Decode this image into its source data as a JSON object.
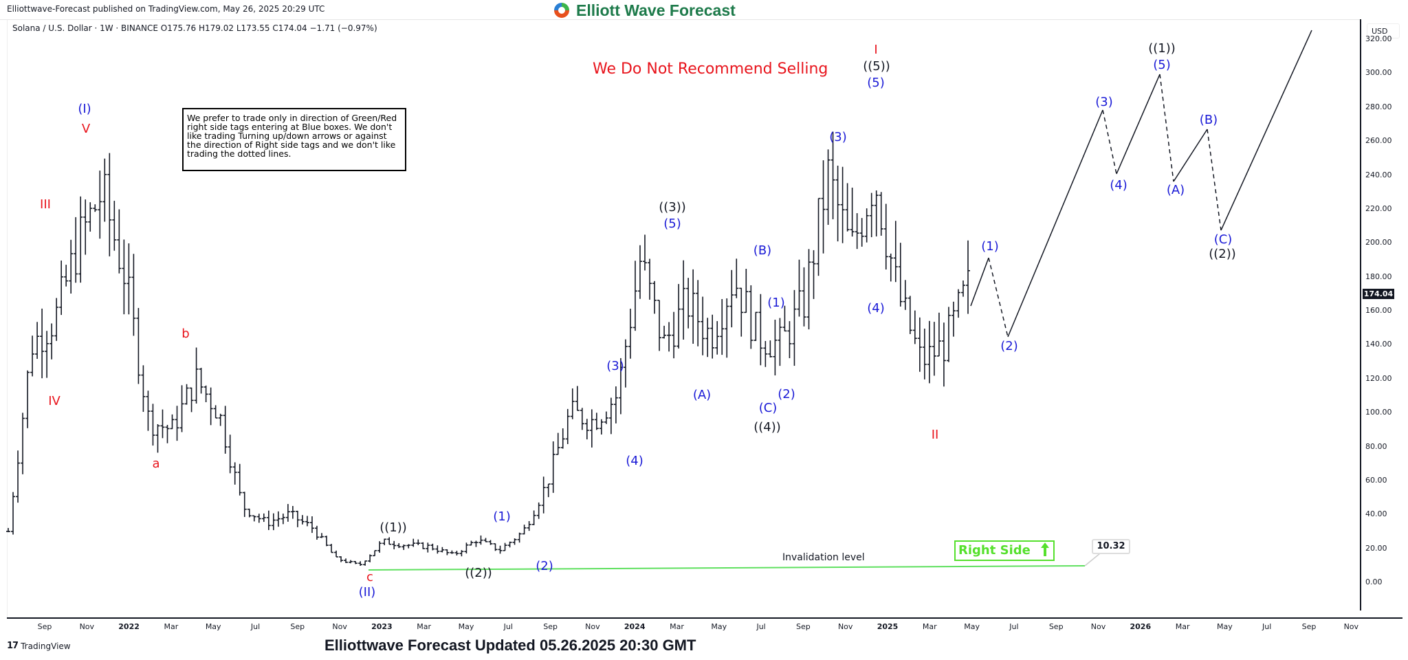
{
  "header": {
    "published": "Elliottwave-Forecast published on TradingView.com, May 26, 2025 20:29 UTC",
    "brand": "Elliott Wave Forecast",
    "symbol_line": "Solana / U.S. Dollar · 1W · BINANCE  O175.76  H179.02  L173.55  C174.04  −1.71 (−0.97%)"
  },
  "symbol": {
    "name": "Solana / U.S. Dollar",
    "interval": "1W",
    "exchange": "BINANCE",
    "open": "175.76",
    "high": "179.02",
    "low": "173.55",
    "close": "174.04",
    "change": "−1.71",
    "change_pct": "(−0.97%)"
  },
  "price_axis": {
    "currency": "USD",
    "ticks": [
      "320.00",
      "300.00",
      "280.00",
      "260.00",
      "240.00",
      "220.00",
      "200.00",
      "180.00",
      "160.00",
      "140.00",
      "120.00",
      "100.00",
      "80.00",
      "60.00",
      "40.00",
      "20.00",
      "0.00"
    ],
    "last_price": "174.04"
  },
  "time_axis": {
    "ticks": [
      "Sep",
      "Nov",
      "2022",
      "Mar",
      "May",
      "Jul",
      "Sep",
      "Nov",
      "2023",
      "Mar",
      "May",
      "Jul",
      "Sep",
      "Nov",
      "2024",
      "Mar",
      "May",
      "Jul",
      "Sep",
      "Nov",
      "2025",
      "Mar",
      "May",
      "Jul",
      "Sep",
      "Nov",
      "2026",
      "Mar",
      "May",
      "Jul",
      "Sep",
      "Nov"
    ]
  },
  "annotations": {
    "no_sell": "We Do Not Recommend Selling",
    "disclaimer": "We prefer to trade only in direction of Green/Red right side tags entering at Blue boxes. We don't like trading Turning up/down arrows or against the direction of Right side tags and we don't like trading the dotted lines.",
    "invalidation_label": "Invalidation level",
    "invalidation_value": "10.32",
    "right_side": "Right Side",
    "right_side_arrow": "up-arrow-icon"
  },
  "footer": {
    "tradingview": "TradingView",
    "tv_logo": "17",
    "updated": "Elliottwave Forecast Updated 05.26.2025 20:30 GMT"
  },
  "colors": {
    "wave_blue": "#1a1ad6",
    "wave_red": "#e8141c",
    "wave_black": "#131722",
    "right_side_green": "#55e02c",
    "invalidation_line": "#5fe05f",
    "brand_green": "#1d7a4a"
  },
  "chart_data": {
    "type": "ohlc",
    "title": "Solana / U.S. Dollar · 1W · BINANCE",
    "xlabel": "",
    "ylabel": "USD",
    "ylim": [
      0,
      330
    ],
    "grid": false,
    "x_range": [
      "2021-08",
      "2026-12"
    ],
    "last_close": 174.04,
    "invalidation_level": 10.32,
    "approx_weekly_closes": [
      {
        "date": "2021-08",
        "price": 30
      },
      {
        "date": "2021-09",
        "price": 140
      },
      {
        "date": "2021-09-mid",
        "price": 155
      },
      {
        "date": "2021-10",
        "price": 200
      },
      {
        "date": "2021-11",
        "price": 230
      },
      {
        "date": "2021-12",
        "price": 180
      },
      {
        "date": "2022-01",
        "price": 95
      },
      {
        "date": "2022-02",
        "price": 90
      },
      {
        "date": "2022-03",
        "price": 120
      },
      {
        "date": "2022-04",
        "price": 100
      },
      {
        "date": "2022-05",
        "price": 45
      },
      {
        "date": "2022-06",
        "price": 35
      },
      {
        "date": "2022-08",
        "price": 40
      },
      {
        "date": "2022-10",
        "price": 32
      },
      {
        "date": "2022-11",
        "price": 14
      },
      {
        "date": "2022-12",
        "price": 10
      },
      {
        "date": "2023-01",
        "price": 24
      },
      {
        "date": "2023-03",
        "price": 22
      },
      {
        "date": "2023-05",
        "price": 21
      },
      {
        "date": "2023-06",
        "price": 16
      },
      {
        "date": "2023-07",
        "price": 25
      },
      {
        "date": "2023-09",
        "price": 19
      },
      {
        "date": "2023-10",
        "price": 30
      },
      {
        "date": "2023-11",
        "price": 58
      },
      {
        "date": "2023-12",
        "price": 100
      },
      {
        "date": "2024-01",
        "price": 95
      },
      {
        "date": "2024-02",
        "price": 110
      },
      {
        "date": "2024-03",
        "price": 190
      },
      {
        "date": "2024-04",
        "price": 140
      },
      {
        "date": "2024-05",
        "price": 165
      },
      {
        "date": "2024-06",
        "price": 145
      },
      {
        "date": "2024-07",
        "price": 180
      },
      {
        "date": "2024-08",
        "price": 145
      },
      {
        "date": "2024-09",
        "price": 140
      },
      {
        "date": "2024-10",
        "price": 165
      },
      {
        "date": "2024-11",
        "price": 240
      },
      {
        "date": "2024-12",
        "price": 195
      },
      {
        "date": "2025-01",
        "price": 240
      },
      {
        "date": "2025-02",
        "price": 170
      },
      {
        "date": "2025-03",
        "price": 130
      },
      {
        "date": "2025-04",
        "price": 140
      },
      {
        "date": "2025-05",
        "price": 174
      }
    ],
    "wave_labels": [
      {
        "label": "III",
        "color": "red",
        "price": 221
      },
      {
        "label": "IV",
        "color": "red",
        "price": 115
      },
      {
        "label": "(I)",
        "color": "blue",
        "price": 268
      },
      {
        "label": "V",
        "color": "red",
        "price": 268
      },
      {
        "label": "a",
        "color": "red",
        "price": 78
      },
      {
        "label": "b",
        "color": "red",
        "price": 143
      },
      {
        "label": "c",
        "color": "red",
        "price": 8
      },
      {
        "label": "(II)",
        "color": "blue",
        "price": 8
      },
      {
        "label": "((1))",
        "color": "black",
        "price": 28
      },
      {
        "label": "((2))",
        "color": "black",
        "price": 13
      },
      {
        "label": "(1)",
        "color": "blue",
        "price": 32
      },
      {
        "label": "(2)",
        "color": "blue",
        "price": 17
      },
      {
        "label": "(3)",
        "color": "blue",
        "price": 126
      },
      {
        "label": "(4)",
        "color": "blue",
        "price": 79
      },
      {
        "label": "(5)",
        "color": "blue",
        "price": 210
      },
      {
        "label": "((3))",
        "color": "black",
        "price": 210
      },
      {
        "label": "(A)",
        "color": "blue",
        "price": 118
      },
      {
        "label": "(B)",
        "color": "blue",
        "price": 194
      },
      {
        "label": "(C)",
        "color": "blue",
        "price": 110
      },
      {
        "label": "((4))",
        "color": "black",
        "price": 110
      },
      {
        "label": "(1)",
        "color": "blue",
        "price": 162
      },
      {
        "label": "(2)",
        "color": "blue",
        "price": 120
      },
      {
        "label": "(3)",
        "color": "blue",
        "price": 264
      },
      {
        "label": "(4)",
        "color": "blue",
        "price": 168
      },
      {
        "label": "(5)",
        "color": "blue",
        "price": 295
      },
      {
        "label": "((5))",
        "color": "black",
        "price": 295
      },
      {
        "label": "I",
        "color": "red",
        "price": 295
      },
      {
        "label": "II",
        "color": "red",
        "price": 95
      }
    ],
    "projection": [
      {
        "label": "(1)",
        "date": "2025-07",
        "price": 197,
        "line": "solid"
      },
      {
        "label": "(2)",
        "date": "2025-08",
        "price": 148,
        "line": "dotted"
      },
      {
        "label": "(3)",
        "date": "2025-12",
        "price": 283,
        "line": "solid"
      },
      {
        "label": "(4)",
        "date": "2026-01",
        "price": 246,
        "line": "dotted"
      },
      {
        "label": "(5) / ((1))",
        "date": "2026-03",
        "price": 306,
        "line": "solid"
      },
      {
        "label": "(A)",
        "date": "2026-04",
        "price": 241,
        "line": "dotted"
      },
      {
        "label": "(B)",
        "date": "2026-05",
        "price": 273,
        "line": "solid"
      },
      {
        "label": "(C) / ((2))",
        "date": "2026-06",
        "price": 211,
        "line": "dotted"
      },
      {
        "label": "",
        "date": "2026-11",
        "price": 330,
        "line": "solid"
      }
    ]
  }
}
